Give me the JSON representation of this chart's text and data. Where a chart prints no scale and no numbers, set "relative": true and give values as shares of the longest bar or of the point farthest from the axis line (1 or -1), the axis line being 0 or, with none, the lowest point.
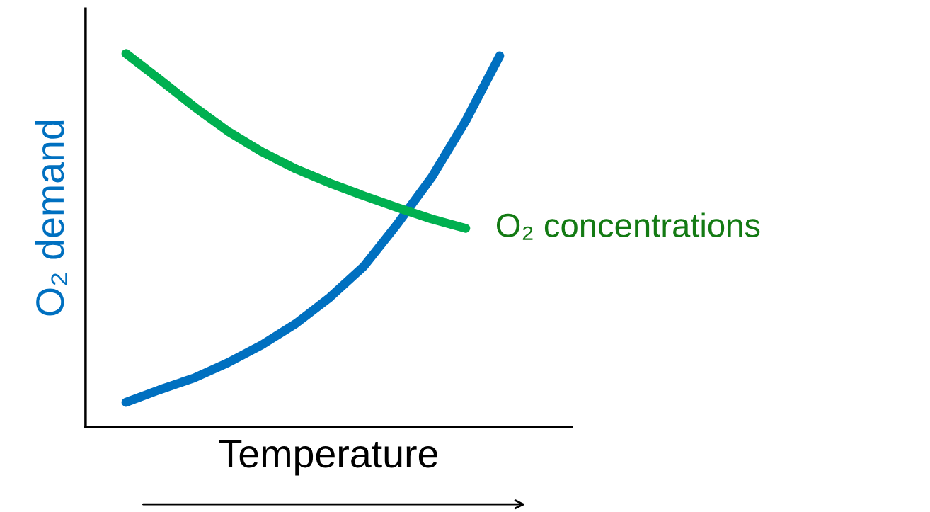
{
  "chart_data": {
    "type": "line",
    "relative": true,
    "xlabel": "Temperature",
    "ylabel": "O₂ demand",
    "categories": [
      null,
      null,
      null,
      null,
      null,
      null,
      null,
      null,
      null,
      null,
      null,
      null
    ],
    "series": [
      {
        "color": "#0070c0",
        "values": [
          0.066,
          0.1,
          0.131,
          0.172,
          0.22,
          0.277,
          0.347,
          0.43,
          0.545,
          0.669,
          0.82,
          0.994
        ]
      },
      {
        "name": "O₂ concentrations",
        "color": "#00b050",
        "values": [
          1.0,
          0.93,
          0.858,
          0.792,
          0.737,
          0.691,
          0.653,
          0.619,
          0.587,
          0.557,
          0.532,
          null
        ]
      }
    ],
    "legend": false,
    "line_style": "solid"
  }
}
